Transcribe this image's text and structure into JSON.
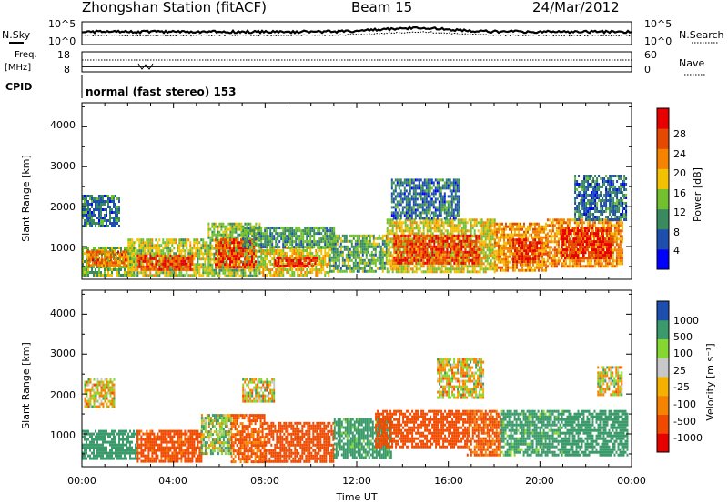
{
  "header": {
    "station": "Zhongshan Station (fitACF)",
    "beam": "Beam 15",
    "date": "24/Mar/2012"
  },
  "summary": {
    "nsky_label": "N.Sky",
    "nsky_ticks": [
      "10^5",
      "10^0"
    ],
    "nsearch_label": "N.Search",
    "nsearch_ticks": [
      "10^5",
      "10^0"
    ],
    "freq_label_1": "Freq.",
    "freq_label_2": "[MHz]",
    "freq_ticks": [
      "18",
      "8"
    ],
    "nave_label": "Nave",
    "nave_ticks": [
      "60",
      "0"
    ],
    "cpid_label": "CPID",
    "cpid_value": "normal (fast stereo) 153"
  },
  "time_axis": {
    "label": "Time UT",
    "ticks": [
      "00:00",
      "04:00",
      "08:00",
      "12:00",
      "16:00",
      "20:00",
      "00:00"
    ]
  },
  "colors": {
    "power": [
      "#0000ff",
      "#1f4fae",
      "#3a8a5f",
      "#72c030",
      "#f3c100",
      "#f58300",
      "#e54a00",
      "#e80000"
    ],
    "velocity": [
      "#e80000",
      "#ef4a00",
      "#f58300",
      "#f5b000",
      "#c8c8c8",
      "#86d830",
      "#3b9a6a",
      "#1f4fae"
    ],
    "frame": "#000000"
  },
  "chart_data": [
    {
      "type": "heatmap",
      "panel": "power",
      "ylabel": "Slant Range [km]",
      "xlabel": "",
      "x_range_hours": [
        0,
        24
      ],
      "ylim": [
        180,
        4600
      ],
      "yticks": [
        "1000",
        "2000",
        "3000",
        "4000"
      ],
      "colorbar": {
        "label": "Power [dB]",
        "ticks": [
          "4",
          "8",
          "12",
          "16",
          "20",
          "24",
          "28"
        ],
        "range": [
          0,
          32
        ]
      },
      "regions": [
        {
          "x": [
            0.0,
            2.3
          ],
          "y": [
            300,
            1000
          ],
          "value": 14
        },
        {
          "x": [
            0.0,
            1.6
          ],
          "y": [
            1500,
            2300
          ],
          "value": 8
        },
        {
          "x": [
            0.2,
            2.0
          ],
          "y": [
            500,
            900
          ],
          "value": 24
        },
        {
          "x": [
            2.0,
            5.5
          ],
          "y": [
            300,
            1200
          ],
          "value": 16
        },
        {
          "x": [
            2.4,
            4.8
          ],
          "y": [
            400,
            800
          ],
          "value": 27
        },
        {
          "x": [
            5.5,
            7.8
          ],
          "y": [
            300,
            1600
          ],
          "value": 14
        },
        {
          "x": [
            5.8,
            7.6
          ],
          "y": [
            500,
            1200
          ],
          "value": 26
        },
        {
          "x": [
            7.8,
            10.8
          ],
          "y": [
            300,
            1000
          ],
          "value": 18
        },
        {
          "x": [
            8.4,
            10.3
          ],
          "y": [
            500,
            750
          ],
          "value": 29
        },
        {
          "x": [
            7.0,
            11.0
          ],
          "y": [
            1000,
            1500
          ],
          "value": 11
        },
        {
          "x": [
            10.8,
            13.3
          ],
          "y": [
            350,
            1300
          ],
          "value": 12
        },
        {
          "x": [
            13.3,
            18.0
          ],
          "y": [
            400,
            1700
          ],
          "value": 17
        },
        {
          "x": [
            13.6,
            17.4
          ],
          "y": [
            600,
            1300
          ],
          "value": 27
        },
        {
          "x": [
            13.5,
            16.5
          ],
          "y": [
            1700,
            2700
          ],
          "value": 8
        },
        {
          "x": [
            18.0,
            20.3
          ],
          "y": [
            400,
            1600
          ],
          "value": 21
        },
        {
          "x": [
            18.8,
            20.0
          ],
          "y": [
            600,
            1200
          ],
          "value": 28
        },
        {
          "x": [
            20.3,
            23.6
          ],
          "y": [
            500,
            1700
          ],
          "value": 22
        },
        {
          "x": [
            20.9,
            23.1
          ],
          "y": [
            700,
            1500
          ],
          "value": 28
        },
        {
          "x": [
            21.5,
            23.8
          ],
          "y": [
            1700,
            2800
          ],
          "value": 8
        }
      ]
    },
    {
      "type": "heatmap",
      "panel": "velocity",
      "ylabel": "Slant Range [km]",
      "xlabel": "Time UT",
      "x_range_hours": [
        0,
        24
      ],
      "ylim": [
        180,
        4600
      ],
      "yticks": [
        "1000",
        "2000",
        "3000",
        "4000"
      ],
      "colorbar": {
        "label": "Velocity [m s⁻¹]",
        "ticks": [
          "1000",
          "500",
          "100",
          "25",
          "-25",
          "-100",
          "-500",
          "-1000"
        ],
        "range": [
          -1000,
          1000
        ]
      },
      "regions": [
        {
          "x": [
            0.0,
            2.4
          ],
          "y": [
            400,
            1100
          ],
          "value": 300
        },
        {
          "x": [
            0.1,
            1.4
          ],
          "y": [
            1700,
            2400
          ],
          "value": 0
        },
        {
          "x": [
            2.4,
            5.2
          ],
          "y": [
            300,
            1100
          ],
          "value": -200
        },
        {
          "x": [
            5.2,
            6.5
          ],
          "y": [
            500,
            1500
          ],
          "value": 60
        },
        {
          "x": [
            6.5,
            8.0
          ],
          "y": [
            300,
            1500
          ],
          "value": -150
        },
        {
          "x": [
            7.0,
            8.4
          ],
          "y": [
            1800,
            2400
          ],
          "value": 0
        },
        {
          "x": [
            8.0,
            11.0
          ],
          "y": [
            300,
            1300
          ],
          "value": -300
        },
        {
          "x": [
            11.0,
            13.5
          ],
          "y": [
            400,
            1400
          ],
          "value": 200
        },
        {
          "x": [
            12.8,
            16.8
          ],
          "y": [
            700,
            1600
          ],
          "value": -250
        },
        {
          "x": [
            16.8,
            18.3
          ],
          "y": [
            500,
            1600
          ],
          "value": -150
        },
        {
          "x": [
            18.3,
            21.0
          ],
          "y": [
            500,
            1600
          ],
          "value": 200
        },
        {
          "x": [
            21.0,
            23.8
          ],
          "y": [
            500,
            1600
          ],
          "value": 300
        },
        {
          "x": [
            15.5,
            17.5
          ],
          "y": [
            1900,
            2900
          ],
          "value": 0
        },
        {
          "x": [
            22.5,
            23.6
          ],
          "y": [
            2000,
            2700
          ],
          "value": 0
        }
      ]
    }
  ]
}
